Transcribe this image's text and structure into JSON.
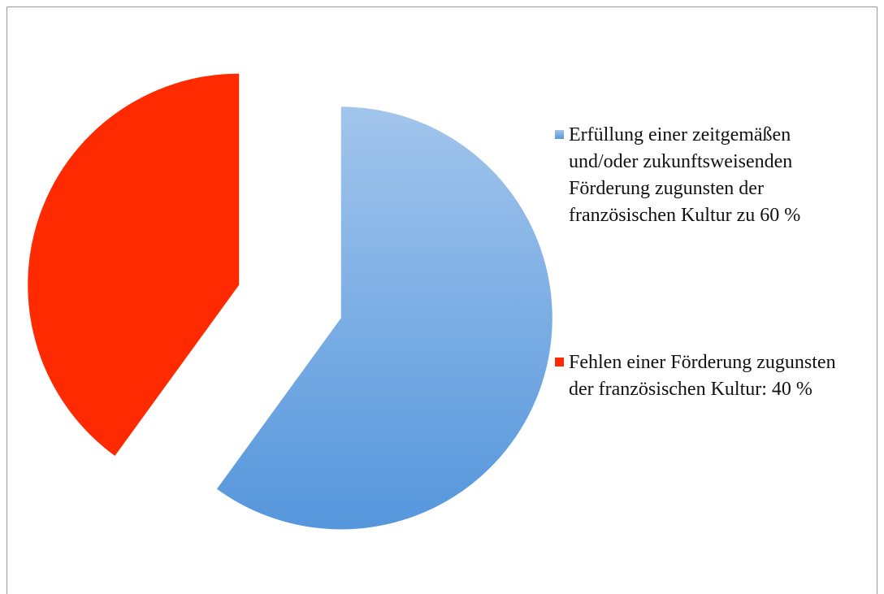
{
  "chart_data": {
    "type": "pie",
    "categories": [
      "Erfüllung einer zeitgemäßen und/oder zukunftsweisenden Förderung zugunsten der französischen Kultur zu 60 %",
      "Fehlen einer Förderung zugunsten der französischen Kultur: 40 %"
    ],
    "values": [
      60,
      40
    ],
    "colors": [
      "#5596dc",
      "#ff2a00"
    ],
    "legend": "right"
  }
}
